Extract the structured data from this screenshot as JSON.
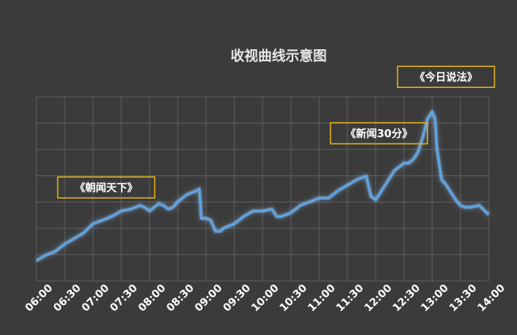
{
  "chart_data": {
    "type": "line",
    "title": "收视曲线示意图",
    "xlabel": "",
    "ylabel": "",
    "grid": true,
    "legend": "none",
    "x_ticks": [
      "06:00",
      "06:30",
      "07:00",
      "07:30",
      "08:00",
      "08:30",
      "09:00",
      "09:30",
      "10:00",
      "10:30",
      "11:00",
      "11:30",
      "12:00",
      "12:30",
      "13:00",
      "13:30",
      "14:00"
    ],
    "xlim": [
      "06:00",
      "14:00"
    ],
    "ylim": [
      0,
      100
    ],
    "colors": {
      "line": "#5fa8ee",
      "glow": "#8fc8ff",
      "annotation_border": "#e1b117",
      "background": "#3b3b3b",
      "grid": "#5e5e5e"
    },
    "series": [
      {
        "x": [
          "06:00",
          "06:10",
          "06:20",
          "06:30",
          "06:40",
          "06:50",
          "07:00",
          "07:10",
          "07:20",
          "07:30",
          "07:40",
          "07:45",
          "07:50",
          "07:55",
          "08:00",
          "08:05",
          "08:10",
          "08:15",
          "08:20",
          "08:25",
          "08:30",
          "08:35",
          "08:40",
          "08:45",
          "08:50",
          "08:53",
          "08:55",
          "09:00",
          "09:05",
          "09:10",
          "09:15",
          "09:20",
          "09:30",
          "09:40",
          "09:50",
          "10:00",
          "10:10",
          "10:15",
          "10:20",
          "10:30",
          "10:40",
          "10:50",
          "11:00",
          "11:10",
          "11:20",
          "11:30",
          "11:40",
          "11:50",
          "11:55",
          "12:00",
          "12:05",
          "12:10",
          "12:20",
          "12:30",
          "12:35",
          "12:40",
          "12:45",
          "12:50",
          "12:55",
          "13:00",
          "13:03",
          "13:05",
          "13:10",
          "13:15",
          "13:20",
          "13:25",
          "13:30",
          "13:35",
          "13:40",
          "13:50",
          "14:00"
        ],
        "values": [
          11,
          14,
          16,
          20,
          23,
          26,
          31,
          33,
          35,
          38,
          39,
          40,
          41,
          40,
          38,
          40,
          42,
          41,
          39,
          40,
          43,
          45,
          47,
          48,
          49,
          50,
          34,
          34,
          33,
          27,
          27,
          29,
          31,
          35,
          38,
          38,
          39,
          35,
          35,
          37,
          41,
          43,
          45,
          45,
          49,
          52,
          55,
          57,
          46,
          44,
          48,
          52,
          60,
          64,
          64,
          66,
          70,
          78,
          88,
          92,
          88,
          72,
          55,
          52,
          48,
          44,
          41,
          40,
          40,
          41,
          36
        ]
      }
    ],
    "annotations": [
      {
        "text": "《朝闻天下》",
        "x": "07:45",
        "y": 42
      },
      {
        "text": "《新闻30分》",
        "x": "12:25",
        "y": 64
      },
      {
        "text": "《今日说法》",
        "x": "12:55",
        "y": 92
      }
    ]
  }
}
